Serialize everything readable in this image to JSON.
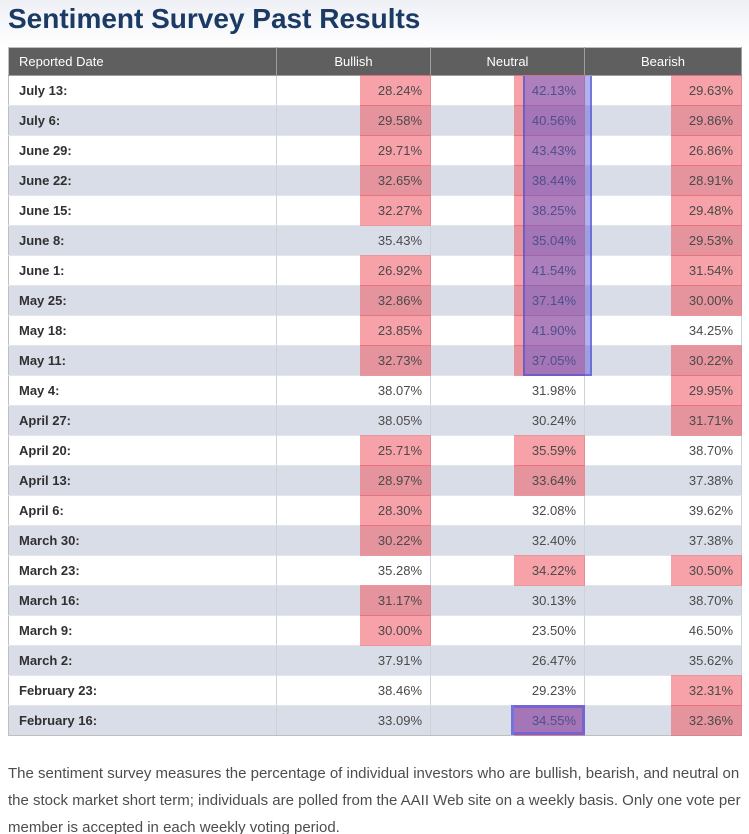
{
  "page": {
    "title": "Sentiment Survey Past Results",
    "footer": "The sentiment survey measures the percentage of individual investors who are bullish, bearish, and neutral on the stock market short term; individuals are polled from the AAII Web site on a weekly basis. Only one vote per member is accepted in each weekly voting period."
  },
  "colors": {
    "title": "#1b3a64",
    "header_bg": "#5f5f5f",
    "row_alt_bg": "#d9dde7",
    "pink_highlight": "rgba(238,85,96,0.55)",
    "blue_overlay": "rgba(84,84,216,0.45)"
  },
  "table": {
    "headers": [
      "Reported Date",
      "Bullish",
      "Neutral",
      "Bearish"
    ],
    "rows": [
      {
        "date": "July 13:",
        "bullish": "28.24%",
        "neutral": "42.13%",
        "bearish": "29.63%",
        "hl": [
          "bullish",
          "neutral",
          "bearish"
        ]
      },
      {
        "date": "July 6:",
        "bullish": "29.58%",
        "neutral": "40.56%",
        "bearish": "29.86%",
        "hl": [
          "bullish",
          "neutral",
          "bearish"
        ]
      },
      {
        "date": "June 29:",
        "bullish": "29.71%",
        "neutral": "43.43%",
        "bearish": "26.86%",
        "hl": [
          "bullish",
          "neutral",
          "bearish"
        ]
      },
      {
        "date": "June 22:",
        "bullish": "32.65%",
        "neutral": "38.44%",
        "bearish": "28.91%",
        "hl": [
          "bullish",
          "neutral",
          "bearish"
        ]
      },
      {
        "date": "June 15:",
        "bullish": "32.27%",
        "neutral": "38.25%",
        "bearish": "29.48%",
        "hl": [
          "bullish",
          "neutral",
          "bearish"
        ]
      },
      {
        "date": "June 8:",
        "bullish": "35.43%",
        "neutral": "35.04%",
        "bearish": "29.53%",
        "hl": [
          "neutral",
          "bearish"
        ]
      },
      {
        "date": "June 1:",
        "bullish": "26.92%",
        "neutral": "41.54%",
        "bearish": "31.54%",
        "hl": [
          "bullish",
          "neutral",
          "bearish"
        ]
      },
      {
        "date": "May 25:",
        "bullish": "32.86%",
        "neutral": "37.14%",
        "bearish": "30.00%",
        "hl": [
          "bullish",
          "neutral",
          "bearish"
        ]
      },
      {
        "date": "May 18:",
        "bullish": "23.85%",
        "neutral": "41.90%",
        "bearish": "34.25%",
        "hl": [
          "bullish",
          "neutral"
        ]
      },
      {
        "date": "May 11:",
        "bullish": "32.73%",
        "neutral": "37.05%",
        "bearish": "30.22%",
        "hl": [
          "bullish",
          "neutral",
          "bearish"
        ]
      },
      {
        "date": "May 4:",
        "bullish": "38.07%",
        "neutral": "31.98%",
        "bearish": "29.95%",
        "hl": [
          "bearish"
        ]
      },
      {
        "date": "April 27:",
        "bullish": "38.05%",
        "neutral": "30.24%",
        "bearish": "31.71%",
        "hl": [
          "bearish"
        ]
      },
      {
        "date": "April 20:",
        "bullish": "25.71%",
        "neutral": "35.59%",
        "bearish": "38.70%",
        "hl": [
          "bullish",
          "neutral"
        ]
      },
      {
        "date": "April 13:",
        "bullish": "28.97%",
        "neutral": "33.64%",
        "bearish": "37.38%",
        "hl": [
          "bullish",
          "neutral"
        ]
      },
      {
        "date": "April 6:",
        "bullish": "28.30%",
        "neutral": "32.08%",
        "bearish": "39.62%",
        "hl": [
          "bullish"
        ]
      },
      {
        "date": "March 30:",
        "bullish": "30.22%",
        "neutral": "32.40%",
        "bearish": "37.38%",
        "hl": [
          "bullish"
        ]
      },
      {
        "date": "March 23:",
        "bullish": "35.28%",
        "neutral": "34.22%",
        "bearish": "30.50%",
        "hl": [
          "neutral",
          "bearish"
        ]
      },
      {
        "date": "March 16:",
        "bullish": "31.17%",
        "neutral": "30.13%",
        "bearish": "38.70%",
        "hl": [
          "bullish"
        ]
      },
      {
        "date": "March 9:",
        "bullish": "30.00%",
        "neutral": "23.50%",
        "bearish": "46.50%",
        "hl": [
          "bullish"
        ]
      },
      {
        "date": "March 2:",
        "bullish": "37.91%",
        "neutral": "26.47%",
        "bearish": "35.62%",
        "hl": []
      },
      {
        "date": "February 23:",
        "bullish": "38.46%",
        "neutral": "29.23%",
        "bearish": "32.31%",
        "hl": [
          "bearish"
        ]
      },
      {
        "date": "February 16:",
        "bullish": "33.09%",
        "neutral": "34.55%",
        "bearish": "32.36%",
        "hl": [
          "neutral",
          "bearish"
        ]
      }
    ]
  },
  "annotations": {
    "neutral_band": {
      "column": "Neutral",
      "from_row": "July 13:",
      "to_row": "May 11:"
    },
    "selection_box": {
      "column": "Neutral",
      "row": "February 16:",
      "value": "34.55%"
    }
  }
}
